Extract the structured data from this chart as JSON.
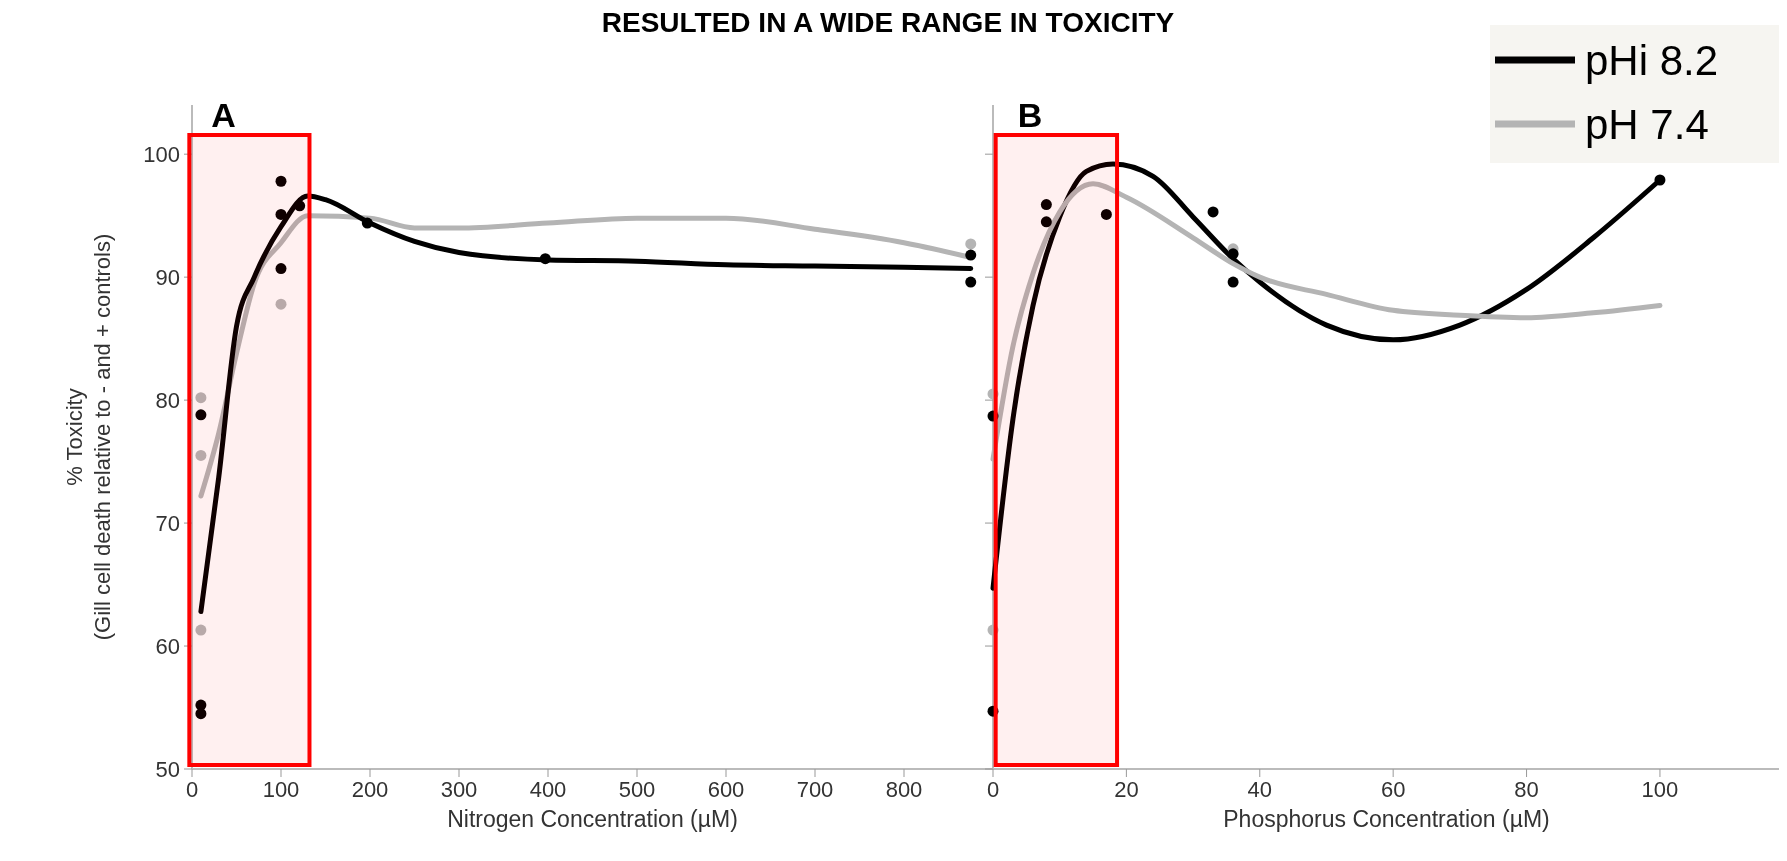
{
  "chart_data": [
    {
      "type": "line",
      "title": "RESULTED IN A WIDE RANGE IN TOXICITY",
      "xlabel": "Nitrogen Concentration (µM)",
      "ylabel": "% Toxicity\n(Gill cell death relative to - and + controls)",
      "xlim": [
        0,
        900
      ],
      "xticks": [
        0,
        100,
        200,
        300,
        400,
        500,
        600,
        700,
        800
      ],
      "ylim": [
        50,
        104
      ],
      "yticks": [
        50,
        60,
        70,
        80,
        90,
        100
      ],
      "grid": false,
      "legend": false,
      "line_style": "solid",
      "bands": [
        {
          "axis": "x",
          "from": -3,
          "to": 132,
          "label": "A",
          "color": "#ff0000"
        }
      ],
      "series": [
        {
          "color": "#b4b4b4",
          "x": [
            10,
            30,
            50,
            70,
            100,
            130,
            200,
            250,
            300,
            400,
            500,
            600,
            700,
            800,
            875
          ],
          "values": [
            72.2,
            77.3,
            83.8,
            89.5,
            92.8,
            95,
            94.8,
            94,
            94,
            94.4,
            94.8,
            94.8,
            93.9,
            92.8,
            91.6
          ]
        },
        {
          "color": "#000000",
          "x": [
            10,
            30,
            50,
            70,
            100,
            130,
            150,
            200,
            250,
            300,
            400,
            500,
            600,
            700,
            800,
            875
          ],
          "values": [
            62.8,
            73.7,
            86,
            90,
            94.1,
            96.6,
            96.3,
            94.4,
            92.9,
            92,
            91.4,
            91.3,
            91,
            90.9,
            90.8,
            90.7
          ]
        },
        {
          "type": "scatter",
          "color": "#b4b4b4",
          "marker": "circle",
          "x": [
            10,
            10,
            10,
            100,
            875
          ],
          "values": [
            80.2,
            75.5,
            61.3,
            87.8,
            92.7
          ]
        },
        {
          "type": "scatter",
          "color": "#000000",
          "marker": "circle",
          "x": [
            10,
            10,
            10,
            100,
            100,
            100,
            121,
            197,
            397,
            875,
            875
          ],
          "values": [
            78.8,
            55.2,
            54.5,
            97.8,
            95.1,
            90.7,
            95.8,
            94.4,
            91.5,
            91.8,
            89.6
          ]
        }
      ]
    },
    {
      "type": "line",
      "xlabel": "Phosphorus Concentration (µM)",
      "xlim": [
        0,
        118
      ],
      "xticks": [
        0,
        20,
        40,
        60,
        80,
        100
      ],
      "ylim": [
        50,
        104
      ],
      "yticks": [
        50,
        60,
        70,
        80,
        90,
        100
      ],
      "tick_labels": "x",
      "grid": false,
      "legend": "top right",
      "line_style": "solid",
      "bands": [
        {
          "axis": "x",
          "from": 0.4,
          "to": 18.6,
          "label": "B",
          "color": "#ff0000"
        }
      ],
      "series": [
        {
          "name": "pHi 8.2",
          "color": "#000000",
          "x": [
            0,
            3,
            6,
            10,
            14,
            18,
            24,
            30,
            36,
            40,
            50,
            60,
            70,
            80,
            90,
            100
          ],
          "values": [
            64.7,
            78.5,
            87.7,
            94.9,
            98.6,
            99.2,
            98.2,
            94.9,
            91.5,
            89.6,
            86.1,
            84.9,
            86.1,
            89,
            93.2,
            97.9
          ]
        },
        {
          "name": "pH 7.4",
          "color": "#b4b4b4",
          "x": [
            0,
            3,
            6,
            10,
            15,
            20,
            30,
            36,
            40,
            50,
            60,
            70,
            80,
            90,
            100
          ],
          "values": [
            75.2,
            84.4,
            90.3,
            95.3,
            97.6,
            96.5,
            93.2,
            91.1,
            90,
            88.6,
            87.3,
            86.9,
            86.7,
            87.1,
            87.7
          ]
        },
        {
          "type": "scatter",
          "color": "#b4b4b4",
          "marker": "circle",
          "x": [
            0,
            0,
            36
          ],
          "values": [
            80.5,
            61.3,
            92.3
          ]
        },
        {
          "type": "scatter",
          "color": "#000000",
          "marker": "circle",
          "x": [
            0,
            0,
            8,
            8,
            17,
            33,
            36,
            36,
            100
          ],
          "values": [
            78.7,
            54.7,
            95.9,
            94.5,
            95.1,
            95.3,
            89.6,
            91.9,
            97.9
          ]
        }
      ]
    }
  ]
}
